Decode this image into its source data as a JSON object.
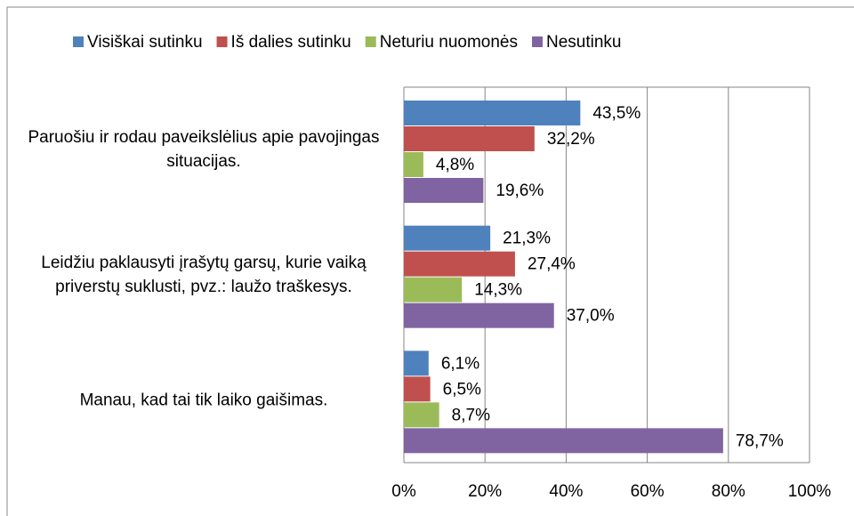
{
  "chart_data": {
    "type": "bar",
    "orientation": "horizontal",
    "categories": [
      "Paruošiu ir rodau paveikslėlius apie pavojingas situacijas.",
      "Leidžiu paklausyti įrašytų garsų, kurie vaiką priverstų suklusti, pvz.: laužo traškesys.",
      "Manau, kad tai tik laiko gaišimas."
    ],
    "series": [
      {
        "name": "Visiškai sutinku",
        "color": "#4f81bd",
        "values": [
          43.5,
          21.3,
          6.1
        ],
        "value_labels": [
          "43,5%",
          "21,3%",
          "6,1%"
        ]
      },
      {
        "name": "Iš dalies sutinku",
        "color": "#c0504d",
        "values": [
          32.2,
          27.4,
          6.5
        ],
        "value_labels": [
          "32,2%",
          "27,4%",
          "6,5%"
        ]
      },
      {
        "name": "Neturiu nuomonės",
        "color": "#9bbb59",
        "values": [
          4.8,
          14.3,
          8.7
        ],
        "value_labels": [
          "4,8%",
          "14,3%",
          "8,7%"
        ]
      },
      {
        "name": "Nesutinku",
        "color": "#8064a2",
        "values": [
          19.6,
          37.0,
          78.7
        ],
        "value_labels": [
          "19,6%",
          "37,0%",
          "78,7%"
        ]
      }
    ],
    "xlim": [
      0,
      100
    ],
    "xticks": [
      {
        "value": 0,
        "label": "0%"
      },
      {
        "value": 20,
        "label": "20%"
      },
      {
        "value": 40,
        "label": "40%"
      },
      {
        "value": 60,
        "label": "60%"
      },
      {
        "value": 80,
        "label": "80%"
      },
      {
        "value": 100,
        "label": "100%"
      }
    ],
    "grid": true,
    "legend": "top"
  }
}
